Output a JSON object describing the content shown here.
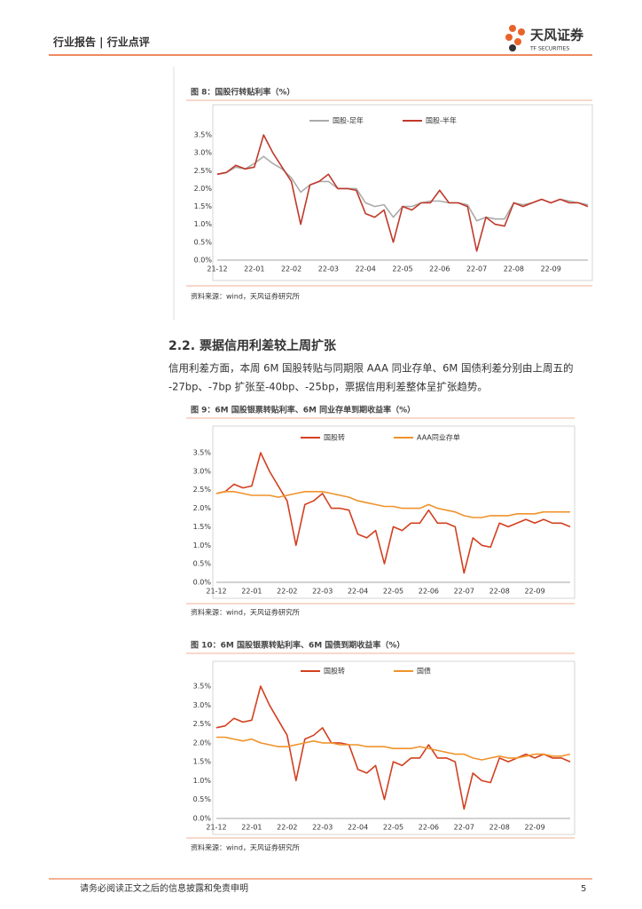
{
  "header": {
    "breadcrumb": "行业报告 | 行业点评",
    "logo_name": "天风证券",
    "logo_sub": "TF SECURITIES"
  },
  "section": {
    "heading": "2.2. 票据信用利差较上周扩张",
    "paragraph": [
      "信用利差方面，本周 6M 国股转贴与同期限 AAA 同业存单、6M 国债利差分别由上周五的",
      "-27bp、-7bp 扩张至-40bp、-25bp，票据信用利差整体呈扩张趋势。"
    ]
  },
  "chart_data": [
    {
      "type": "line",
      "title": "图 8：国股行转贴利率（%）",
      "source": "资料来源：wind，天风证券研究所",
      "categories": [
        "21-12",
        null,
        null,
        null,
        "22-01",
        null,
        null,
        null,
        "22-02",
        null,
        null,
        null,
        "22-03",
        null,
        null,
        null,
        "22-04",
        null,
        null,
        null,
        "22-05",
        null,
        null,
        null,
        "22-06",
        null,
        null,
        null,
        "22-07",
        null,
        null,
        null,
        "22-08",
        null,
        null,
        null,
        "22-09",
        null,
        null,
        null,
        null
      ],
      "series": [
        {
          "name": "国股-足年",
          "color": "#aaaaaa",
          "values": [
            2.4,
            2.45,
            2.6,
            2.55,
            2.7,
            2.9,
            2.7,
            2.55,
            2.3,
            1.9,
            2.1,
            2.2,
            2.2,
            2.0,
            2.0,
            2.0,
            1.6,
            1.5,
            1.55,
            1.2,
            1.5,
            1.5,
            1.6,
            1.65,
            1.65,
            1.6,
            1.6,
            1.55,
            1.1,
            1.2,
            1.15,
            1.15,
            1.6,
            1.55,
            1.6,
            1.7,
            1.6,
            1.7,
            1.65,
            1.6,
            1.55
          ]
        },
        {
          "name": "国股-半年",
          "color": "#c0392b",
          "values": [
            2.4,
            2.45,
            2.65,
            2.55,
            2.6,
            3.5,
            3.0,
            2.6,
            2.2,
            1.0,
            2.1,
            2.2,
            2.4,
            2.0,
            2.0,
            1.95,
            1.3,
            1.2,
            1.4,
            0.5,
            1.5,
            1.4,
            1.6,
            1.6,
            1.95,
            1.6,
            1.6,
            1.5,
            0.25,
            1.2,
            1.0,
            0.95,
            1.6,
            1.5,
            1.6,
            1.7,
            1.6,
            1.7,
            1.6,
            1.6,
            1.5
          ]
        }
      ],
      "ylim": [
        0,
        3.5
      ],
      "yticks": [
        {
          "value": 0,
          "label": "0.0%"
        },
        {
          "value": 0.5,
          "label": "0.5%"
        },
        {
          "value": 1,
          "label": "1.0%"
        },
        {
          "value": 1.5,
          "label": "1.5%"
        },
        {
          "value": 2,
          "label": "2.0%"
        },
        {
          "value": 2.5,
          "label": "2.5%"
        },
        {
          "value": 3,
          "label": "3.0%"
        },
        {
          "value": 3.5,
          "label": "3.5%"
        }
      ],
      "grid": false,
      "legend": "top"
    },
    {
      "type": "line",
      "title": "图 9：6M 国股银票转贴利率、6M 同业存单到期收益率（%）",
      "source": "资料来源：wind，天风证券研究所",
      "categories": [
        "21-12",
        null,
        null,
        null,
        "22-01",
        null,
        null,
        null,
        "22-02",
        null,
        null,
        null,
        "22-03",
        null,
        null,
        null,
        "22-04",
        null,
        null,
        null,
        "22-05",
        null,
        null,
        null,
        "22-06",
        null,
        null,
        null,
        "22-07",
        null,
        null,
        null,
        "22-08",
        null,
        null,
        null,
        "22-09",
        null,
        null,
        null,
        null
      ],
      "series": [
        {
          "name": "国股转",
          "color": "#d2401f",
          "values": [
            2.4,
            2.45,
            2.65,
            2.55,
            2.6,
            3.5,
            3.0,
            2.6,
            2.2,
            1.0,
            2.1,
            2.2,
            2.4,
            2.0,
            2.0,
            1.95,
            1.3,
            1.2,
            1.4,
            0.5,
            1.5,
            1.4,
            1.6,
            1.6,
            1.95,
            1.6,
            1.6,
            1.5,
            0.25,
            1.2,
            1.0,
            0.95,
            1.6,
            1.5,
            1.6,
            1.7,
            1.6,
            1.7,
            1.6,
            1.6,
            1.5
          ]
        },
        {
          "name": "AAA同业存单",
          "color": "#f0922b",
          "values": [
            2.4,
            2.45,
            2.45,
            2.4,
            2.35,
            2.35,
            2.35,
            2.3,
            2.35,
            2.4,
            2.45,
            2.45,
            2.45,
            2.4,
            2.35,
            2.3,
            2.2,
            2.15,
            2.1,
            2.05,
            2.05,
            2.0,
            2.0,
            2.0,
            2.1,
            2.0,
            1.95,
            1.9,
            1.8,
            1.75,
            1.75,
            1.8,
            1.8,
            1.8,
            1.85,
            1.85,
            1.85,
            1.9,
            1.9,
            1.9,
            1.9
          ]
        }
      ],
      "ylim": [
        0,
        3.5
      ],
      "yticks": [
        {
          "value": 0,
          "label": "0.0%"
        },
        {
          "value": 0.5,
          "label": "0.5%"
        },
        {
          "value": 1,
          "label": "1.0%"
        },
        {
          "value": 1.5,
          "label": "1.5%"
        },
        {
          "value": 2,
          "label": "2.0%"
        },
        {
          "value": 2.5,
          "label": "2.5%"
        },
        {
          "value": 3,
          "label": "3.0%"
        },
        {
          "value": 3.5,
          "label": "3.5%"
        }
      ],
      "grid": false,
      "legend": "top"
    },
    {
      "type": "line",
      "title": "图 10：6M 国股银票转贴利率、6M 国债到期收益率（%）",
      "source": "资料来源：wind，天风证券研究所",
      "categories": [
        "21-12",
        null,
        null,
        null,
        "22-01",
        null,
        null,
        null,
        "22-02",
        null,
        null,
        null,
        "22-03",
        null,
        null,
        null,
        "22-04",
        null,
        null,
        null,
        "22-05",
        null,
        null,
        null,
        "22-06",
        null,
        null,
        null,
        "22-07",
        null,
        null,
        null,
        "22-08",
        null,
        null,
        null,
        "22-09",
        null,
        null,
        null,
        null
      ],
      "series": [
        {
          "name": "国股转",
          "color": "#d2401f",
          "values": [
            2.4,
            2.45,
            2.65,
            2.55,
            2.6,
            3.5,
            3.0,
            2.6,
            2.2,
            1.0,
            2.1,
            2.2,
            2.4,
            2.0,
            2.0,
            1.95,
            1.3,
            1.2,
            1.4,
            0.5,
            1.5,
            1.4,
            1.6,
            1.6,
            1.95,
            1.6,
            1.6,
            1.5,
            0.25,
            1.2,
            1.0,
            0.95,
            1.6,
            1.5,
            1.6,
            1.7,
            1.6,
            1.7,
            1.6,
            1.6,
            1.5
          ]
        },
        {
          "name": "国债",
          "color": "#f0922b",
          "values": [
            2.15,
            2.15,
            2.1,
            2.05,
            2.1,
            2.0,
            1.95,
            1.9,
            1.9,
            1.95,
            2.0,
            2.05,
            2.0,
            2.0,
            1.95,
            1.95,
            1.95,
            1.9,
            1.9,
            1.9,
            1.85,
            1.85,
            1.85,
            1.9,
            1.85,
            1.8,
            1.75,
            1.7,
            1.7,
            1.6,
            1.55,
            1.6,
            1.65,
            1.6,
            1.6,
            1.65,
            1.7,
            1.7,
            1.65,
            1.65,
            1.7
          ]
        }
      ],
      "ylim": [
        0,
        3.5
      ],
      "yticks": [
        {
          "value": 0,
          "label": "0.0%"
        },
        {
          "value": 0.5,
          "label": "0.5%"
        },
        {
          "value": 1,
          "label": "1.0%"
        },
        {
          "value": 1.5,
          "label": "1.5%"
        },
        {
          "value": 2,
          "label": "2.0%"
        },
        {
          "value": 2.5,
          "label": "2.5%"
        },
        {
          "value": 3,
          "label": "3.0%"
        },
        {
          "value": 3.5,
          "label": "3.5%"
        }
      ],
      "grid": false,
      "legend": "top"
    }
  ],
  "footer": {
    "disclaimer": "请务必阅读正文之后的信息披露和免责申明",
    "page": 5
  }
}
